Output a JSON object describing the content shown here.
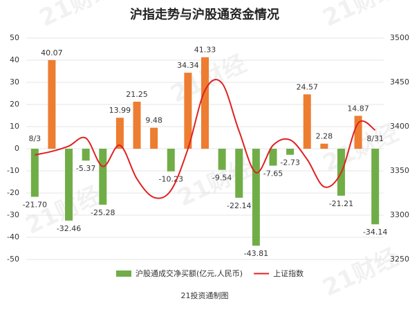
{
  "chart_data": {
    "type": "bar_line",
    "title": "沪指走势与沪股通资金情况",
    "watermark": "21财经",
    "source": "21投资通制图",
    "categories": [
      "8/3",
      null,
      null,
      null,
      null,
      null,
      null,
      null,
      null,
      null,
      null,
      null,
      null,
      null,
      null,
      null,
      null,
      null,
      null,
      null,
      "8/31"
    ],
    "series": [
      {
        "name": "沪股通成交净买额(亿元,人民币)",
        "type": "bar",
        "color": "#70ad47",
        "positive_color": "#ed7d31",
        "values": [
          -21.7,
          40.07,
          -32.46,
          -5.37,
          -25.28,
          13.99,
          21.25,
          9.48,
          -10.23,
          34.34,
          41.33,
          -9.54,
          -22.14,
          -43.81,
          -7.65,
          -2.73,
          24.57,
          2.28,
          -21.21,
          14.87,
          -34.14
        ],
        "value_labels": [
          "-21.70",
          "40.07",
          "-32.46",
          "-5.37",
          "-25.28",
          "13.99",
          "21.25",
          "9.48",
          "-10.23",
          "34.34",
          "41.33",
          "-9.54",
          "-22.14",
          "-43.81",
          "-7.65",
          "-2.73",
          "24.57",
          "2.28",
          "-21.21",
          "14.87",
          "-34.14"
        ]
      },
      {
        "name": "上证指数",
        "type": "line",
        "axis": "y2",
        "color": "#e02020",
        "values": [
          3368,
          3372,
          3378,
          3387,
          3355,
          3379,
          3341,
          3320,
          3328,
          3375,
          3441,
          3449,
          3395,
          3348,
          3379,
          3385,
          3363,
          3332,
          3348,
          3404,
          3396
        ]
      }
    ],
    "ylim": [
      -50,
      50
    ],
    "yticks": [
      -50,
      -40,
      -30,
      -20,
      -10,
      0,
      10,
      20,
      30,
      40,
      50
    ],
    "y2lim": [
      3250,
      3500
    ],
    "y2ticks": [
      3250,
      3300,
      3350,
      3400,
      3450,
      3500
    ],
    "grid": true
  }
}
